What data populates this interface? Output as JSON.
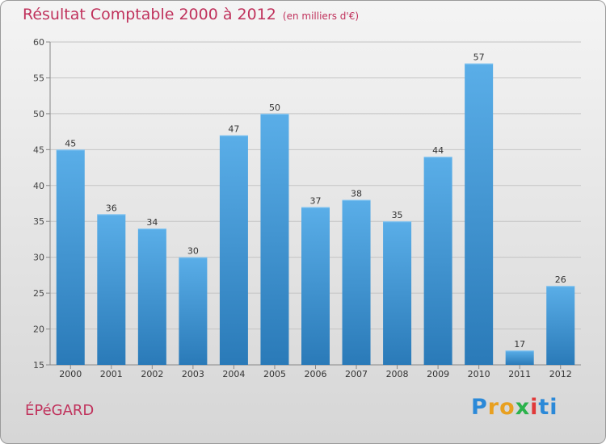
{
  "header": {
    "title": "Résultat Comptable 2000 à 2012",
    "subtitle": "(en milliers d'€)"
  },
  "footer": {
    "commune": "ÉPéGARD",
    "logo_letters": [
      "P",
      "r",
      "o",
      "x",
      "i",
      "ti"
    ]
  },
  "colors": {
    "bar_light": "#5aaee8",
    "bar_dark": "#2a7ab8",
    "title": "#c0325c"
  },
  "chart_data": {
    "type": "bar",
    "title": "Résultat Comptable 2000 à 2012",
    "subtitle": "(en milliers d'€)",
    "xlabel": "",
    "ylabel": "",
    "categories": [
      "2000",
      "2001",
      "2002",
      "2003",
      "2004",
      "2005",
      "2006",
      "2007",
      "2008",
      "2009",
      "2010",
      "2011",
      "2012"
    ],
    "values": [
      45,
      36,
      34,
      30,
      47,
      50,
      37,
      38,
      35,
      44,
      57,
      17,
      26
    ],
    "data_labels": [
      "45",
      "36",
      "34",
      "30",
      "47",
      "50",
      "37",
      "38",
      "35",
      "44",
      "57",
      "17",
      "26"
    ],
    "ylim": [
      15,
      60
    ],
    "yticks": [
      15,
      20,
      25,
      30,
      35,
      40,
      45,
      50,
      55,
      60
    ],
    "ytick_labels": [
      "15",
      "20",
      "25",
      "30",
      "35",
      "40",
      "45",
      "50",
      "55",
      "60"
    ],
    "grid": true
  }
}
